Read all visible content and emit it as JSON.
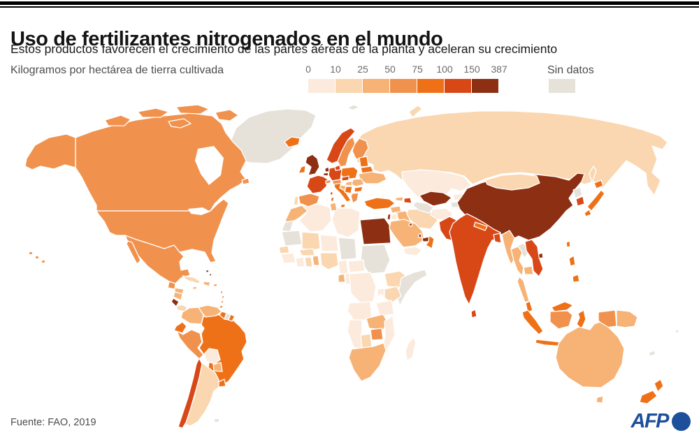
{
  "header": {
    "title": "Uso de fertilizantes nitrogenados en el mundo",
    "subtitle": "Estos productos favorecen el crecimiento de las partes aéreas de la planta y aceleran su crecimiento"
  },
  "legend": {
    "label": "Kilogramos por hectárea de tierra cultivada",
    "ticks": [
      "0",
      "10",
      "25",
      "50",
      "75",
      "100",
      "150",
      "387"
    ],
    "bucket_colors": [
      "#fcebdc",
      "#fad7b0",
      "#f7b276",
      "#f0924e",
      "#ee7118",
      "#d84716",
      "#8d2f13"
    ],
    "no_data_label": "Sin datos",
    "no_data_color": "#e6e2da"
  },
  "footer": {
    "source": "Fuente: FAO, 2019",
    "logo_text": "AFP",
    "logo_color": "#1e4f9b"
  },
  "map": {
    "ocean_color": "#ffffff",
    "border_color": "#ffffff",
    "palette": {
      "b0": "#fcebdc",
      "b10": "#fad7b0",
      "b25": "#f7b276",
      "b50": "#f0924e",
      "b75": "#ee7118",
      "b100": "#d84716",
      "b150": "#8d2f13",
      "nodata": "#e6e2da"
    },
    "countries": {
      "greenland": "nodata",
      "canada": "b50",
      "canada-islands": "b50",
      "alaska": "b50",
      "usa": "b50",
      "hawaii": "b50",
      "mexico": "b50",
      "guatemala": "b50",
      "honduras": "b25",
      "nicaragua": "b25",
      "costa-rica": "b150",
      "panama": "b10",
      "cuba": "b10",
      "jamaica": "b25",
      "hispaniola": "b25",
      "puerto-rico": "b50",
      "bahamas": "b150",
      "lesser-antilles": "b75",
      "colombia": "b25",
      "venezuela": "b25",
      "guyana": "b75",
      "suriname": "nodata",
      "french-guiana": "b75",
      "ecuador": "b75",
      "peru": "b50",
      "brazil": "b75",
      "bolivia": "b0",
      "paraguay": "b25",
      "uruguay": "b75",
      "argentina": "b10",
      "chile": "b100",
      "falklands": "nodata",
      "iceland": "b75",
      "uk": "b150",
      "ireland": "b75",
      "norway": "b100",
      "sweden": "b50",
      "finland": "b50",
      "denmark": "b100",
      "baltics": "b75",
      "belarus": "b75",
      "netherlands": "b150",
      "belgium": "b150",
      "germany": "b100",
      "poland": "b75",
      "france": "b100",
      "spain": "b50",
      "portugal": "b10",
      "italy": "b75",
      "switzerland": "b50",
      "austria": "b50",
      "czechia": "b100",
      "hungary": "b25",
      "romania": "b25",
      "bulgaria": "b75",
      "serbia": "b75",
      "croatia": "b25",
      "greece": "b50",
      "ukraine": "b25",
      "russia": "b10",
      "svalbard": "nodata",
      "kazakhstan": "b0",
      "mongolia": "b10",
      "uzbekistan": "b150",
      "turkmenistan": "nodata",
      "kyrgyzstan": "b0",
      "tajikistan": "nodata",
      "georgia": "b25",
      "azerbaijan": "b100",
      "turkey": "b75",
      "syria": "b25",
      "iraq": "b25",
      "iran": "b10",
      "afghanistan": "b0",
      "pakistan": "b100",
      "israel": "b150",
      "jordan": "b0",
      "kuwait": "b150",
      "saudi-arabia": "b25",
      "qatar": "b150",
      "uae": "b150",
      "oman": "b75",
      "yemen": "b0",
      "morocco": "b25",
      "western-sahara": "nodata",
      "algeria": "b0",
      "tunisia": "b25",
      "libya": "b0",
      "egypt": "b150",
      "mauritania": "nodata",
      "mali": "b10",
      "burkina-faso": "b10",
      "niger": "b0",
      "chad": "nodata",
      "sudan": "nodata",
      "senegal": "b10",
      "guinea": "b0",
      "ivory-coast": "b0",
      "ghana": "b10",
      "togo-benin": "b25",
      "nigeria": "b10",
      "cameroon": "b0",
      "central-african-republic": "b0",
      "gabon": "b25",
      "congo": "b0",
      "drc": "b0",
      "ethiopia": "b10",
      "somalia": "nodata",
      "kenya": "b10",
      "uganda": "b0",
      "tanzania": "b0",
      "angola": "b0",
      "zambia": "b25",
      "zimbabwe": "b50",
      "mozambique": "b0",
      "botswana": "b10",
      "namibia": "b0",
      "south-africa": "b25",
      "madagascar": "b0",
      "china": "b150",
      "north-korea": "nodata",
      "south-korea": "b100",
      "japan": "b75",
      "taiwan": "b75",
      "india": "b100",
      "nepal": "b75",
      "bangladesh": "b100",
      "sri-lanka": "b100",
      "myanmar": "b25",
      "thailand": "b25",
      "laos": "nodata",
      "cambodia": "b25",
      "vietnam": "b100",
      "malaysia": "b75",
      "kalimantan": "b50",
      "indonesia": "b75",
      "west-papua": "b50",
      "papua-new-guinea": "b25",
      "philippines": "b75",
      "australia": "b25",
      "new-zealand": "b75",
      "new-caledonia": "nodata",
      "fiji": "nodata"
    }
  }
}
